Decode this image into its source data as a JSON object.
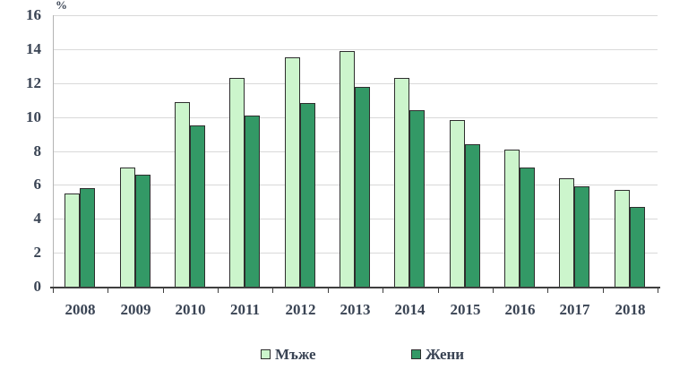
{
  "chart_data": {
    "type": "bar",
    "title": "",
    "xlabel": "",
    "ylabel": "%",
    "categories": [
      "2008",
      "2009",
      "2010",
      "2011",
      "2012",
      "2013",
      "2014",
      "2015",
      "2016",
      "2017",
      "2018"
    ],
    "series": [
      {
        "name": "Мъже",
        "color": "#ccf5cc",
        "values": [
          5.5,
          7.0,
          10.9,
          12.3,
          13.5,
          13.9,
          12.3,
          9.8,
          8.1,
          6.4,
          5.7
        ]
      },
      {
        "name": "Жени",
        "color": "#339966",
        "values": [
          5.8,
          6.6,
          9.5,
          10.1,
          10.8,
          11.8,
          10.4,
          8.4,
          7.0,
          5.9,
          4.7
        ]
      }
    ],
    "ylim": [
      0,
      16
    ],
    "yticks": [
      0,
      2,
      4,
      6,
      8,
      10,
      12,
      14,
      16
    ],
    "grid": true,
    "legend_position": "bottom"
  },
  "palette": {
    "men_fill": "#ccf5cc",
    "women_fill": "#339966",
    "bar_border": "#2e2e2e",
    "gridline": "#d9d9d9",
    "axis": "#3f3f3f",
    "text": "#3a4454",
    "background": "#ffffff"
  }
}
